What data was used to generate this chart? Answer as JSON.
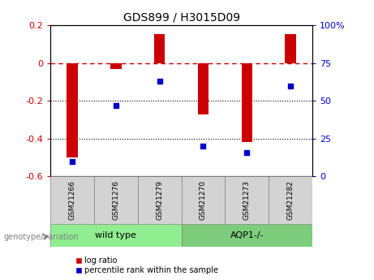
{
  "title": "GDS899 / H3015D09",
  "samples": [
    "GSM21266",
    "GSM21276",
    "GSM21279",
    "GSM21270",
    "GSM21273",
    "GSM21282"
  ],
  "log_ratios": [
    -0.5,
    -0.03,
    0.155,
    -0.27,
    -0.42,
    0.153
  ],
  "percentile_ranks": [
    10,
    47,
    63,
    20,
    16,
    60
  ],
  "groups": [
    {
      "label": "wild type",
      "indices": [
        0,
        1,
        2
      ],
      "color": "#90ee90"
    },
    {
      "label": "AQP1-/-",
      "indices": [
        3,
        4,
        5
      ],
      "color": "#7dcd7d"
    }
  ],
  "bar_color": "#cc0000",
  "dot_color": "#0000cc",
  "ylim_left": [
    -0.6,
    0.2
  ],
  "ylim_right": [
    0,
    100
  ],
  "right_ticks": [
    0,
    25,
    50,
    75,
    100
  ],
  "right_tick_labels": [
    "0",
    "25",
    "50",
    "75",
    "100%"
  ],
  "left_ticks": [
    -0.6,
    -0.4,
    -0.2,
    0.0,
    0.2
  ],
  "left_tick_labels": [
    "-0.6",
    "-0.4",
    "-0.2",
    "0",
    "0.2"
  ],
  "hline_y": 0.0,
  "dotted_lines": [
    -0.2,
    -0.4
  ],
  "background_color": "#ffffff",
  "plot_bg_color": "#ffffff",
  "legend_items": [
    {
      "label": "log ratio",
      "color": "#cc0000"
    },
    {
      "label": "percentile rank within the sample",
      "color": "#0000cc"
    }
  ],
  "genotype_label": "genotype/variation",
  "sample_box_color": "#d3d3d3",
  "xlim": [
    -0.5,
    5.5
  ]
}
